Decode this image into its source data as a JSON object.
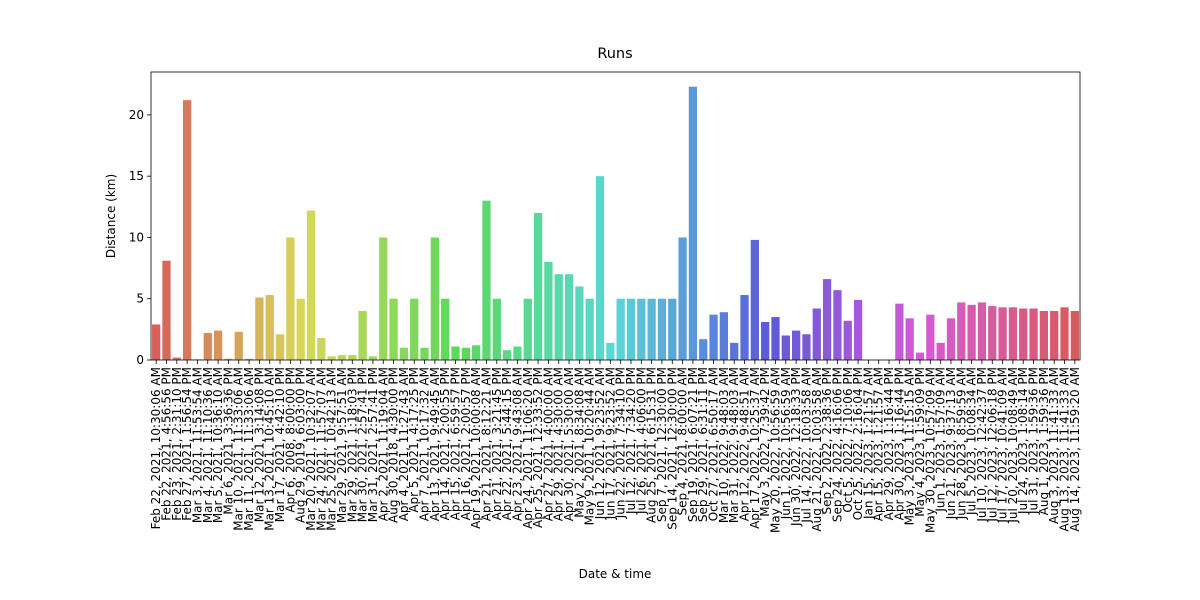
{
  "chart_data": {
    "type": "bar",
    "title": "Runs",
    "x_label": "Date & time",
    "y_label": "Distance (km)",
    "categories": [
      "Feb 22, 2021, 10:30:06 AM",
      "Feb 22, 2021, 4:56:56 PM",
      "Feb 23, 2021, 2:31:10 PM",
      "Feb 27, 2021, 1:56:54 PM",
      "Mar 3, 2021, 11:53:54 AM",
      "Mar 4, 2021, 11:10:36 AM",
      "Mar 5, 2021, 10:36:10 AM",
      "Mar 6, 2021, 3:36:36 PM",
      "Mar 10, 2021, 11:33:06 AM",
      "Mar 11, 2021, 11:33:06 AM",
      "Mar 12, 2021, 3:14:08 PM",
      "Mar 13, 2021, 10:45:10 AM",
      "Mar 17, 2021, 4:42:10 PM",
      "Apr 6, 2008, 8:00:00 PM",
      "Aug 29, 2019, 6:03:00 PM",
      "Mar 20, 2021, 10:32:07 AM",
      "Mar 24, 2021, 11:57:07 AM",
      "Mar 25, 2021, 10:42:13 AM",
      "Mar 29, 2021, 9:57:51 AM",
      "Mar 29, 2021, 1:18:03 PM",
      "Mar 30, 2021, 2:57:41 PM",
      "Mar 31, 2021, 2:57:41 PM",
      "Apr 2, 2021, 11:19:04 AM",
      "Aug 30, 2018, 4:30:00 PM",
      "Apr 4, 2021, 11:27:43 AM",
      "Apr 5, 2021, 4:17:25 PM",
      "Apr 7, 2021, 10:17:32 AM",
      "Apr 13, 2021, 9:49:45 AM",
      "Apr 14, 2021, 2:00:55 PM",
      "Apr 15, 2021, 6:59:57 PM",
      "Apr 16, 2021, 2:00:57 PM",
      "Apr 19, 2021, 10:00:08 AM",
      "Apr 21, 2021, 8:12:21 AM",
      "Apr 21, 2021, 3:21:45 PM",
      "Apr 22, 2021, 5:44:15 PM",
      "Apr 23, 2021, 9:43:08 AM",
      "Apr 24, 2021, 11:06:20 AM",
      "Apr 25, 2021, 12:33:52 PM",
      "Apr 27, 2021, 4:00:00 AM",
      "Apr 29, 2021, 4:30:00 AM",
      "Apr 30, 2021, 5:30:00 AM",
      "May 2, 2021, 8:34:08 AM",
      "May 9, 2021, 10:20:44 AM",
      "Jun 12, 2021, 9:23:52 AM",
      "Jun 17, 2021, 9:23:52 AM",
      "Jun 22, 2021, 7:34:10 PM",
      "Jul 12, 2021, 7:34:20 PM",
      "Jul 26, 2021, 4:06:00 PM",
      "Aug 25, 2021, 6:15:31 PM",
      "Sep 7, 2021, 12:30:00 PM",
      "Sep 14, 2021, 12:30:00 PM",
      "Sep 4, 2021, 8:00:00 AM",
      "Sep 19, 2021, 6:07:21 PM",
      "Sep 29, 2021, 6:31:11 PM",
      "Oct 27, 2021, 6:50:17 AM",
      "Mar 10, 2022, 9:48:03 AM",
      "Mar 31, 2022, 9:48:03 AM",
      "Apr 12, 2022, 9:48:51 AM",
      "Apr 17, 2022, 10:25:37 AM",
      "May 3, 2022, 7:39:42 PM",
      "May 20, 2022, 10:56:59 AM",
      "Jun 1, 2022, 10:56:59 AM",
      "Jun 30, 2022, 12:18:33 PM",
      "Jul 14, 2022, 10:03:58 AM",
      "Aug 21, 2022, 10:03:58 AM",
      "Sep 2, 2022, 2:38:36 PM",
      "Sep 24, 2022, 4:16:06 PM",
      "Oct 5, 2022, 7:10:06 PM",
      "Oct 25, 2022, 2:16:04 PM",
      "Jan 15, 2023, 1:21:57 AM",
      "Apr 15, 2023, 1:21:57 AM",
      "Apr 29, 2023, 1:16:44 PM",
      "Apr 30, 2023, 1:16:44 PM",
      "May 3, 2023, 11:15:15 AM",
      "May 4, 2023, 1:59:09 PM",
      "May 30, 2023, 10:57:09 AM",
      "Jun 1, 2023, 1:57:09 AM",
      "Jun 21, 2023, 9:37:13 AM",
      "Jun 28, 2023, 8:59:59 AM",
      "Jul 5, 2023, 10:08:34 AM",
      "Jul 10, 2023, 12:42:37 PM",
      "Jul 12, 2023, 12:06:18 PM",
      "Jul 17, 2023, 10:41:09 AM",
      "Jul 20, 2023, 10:08:49 AM",
      "Jul 24, 2023, 1:08:14 PM",
      "Jul 31, 2023, 1:59:36 PM",
      "Aug 1, 2023, 1:59:36 PM",
      "Aug 3, 2023, 11:41:33 AM",
      "Aug 13, 2023, 11:41:33 AM",
      "Aug 14, 2023, 11:59:20 AM"
    ],
    "values": [
      2.9,
      8.1,
      0.2,
      21.2,
      0.05,
      2.2,
      2.4,
      0.1,
      2.3,
      0.1,
      5.1,
      5.3,
      2.1,
      10.0,
      5.0,
      12.2,
      1.8,
      0.3,
      0.4,
      0.4,
      4.0,
      0.3,
      10.0,
      5.0,
      1.0,
      5.0,
      1.0,
      10.0,
      5.0,
      1.1,
      1.0,
      1.2,
      13.0,
      5.0,
      0.8,
      1.1,
      5.0,
      12.0,
      8.0,
      7.0,
      7.0,
      6.0,
      5.0,
      15.0,
      1.4,
      5.0,
      5.0,
      5.0,
      5.0,
      5.0,
      5.0,
      10.0,
      22.3,
      1.7,
      3.7,
      3.9,
      1.4,
      5.3,
      9.8,
      3.1,
      3.5,
      2.0,
      2.4,
      2.1,
      4.2,
      6.6,
      5.7,
      3.2,
      4.9,
      0,
      0,
      0,
      4.6,
      3.4,
      0.6,
      3.7,
      1.4,
      3.4,
      4.7,
      4.5,
      4.7,
      4.4,
      4.3,
      4.3,
      4.2,
      4.2,
      4.0,
      4.0,
      4.3,
      4.0
    ],
    "palette": {
      "kind": "husl",
      "hue_start": 3,
      "saturation": 62,
      "lightness": 60
    },
    "ylim": [
      0,
      23.5
    ],
    "yticks": [
      0,
      5,
      10,
      15,
      20
    ]
  }
}
